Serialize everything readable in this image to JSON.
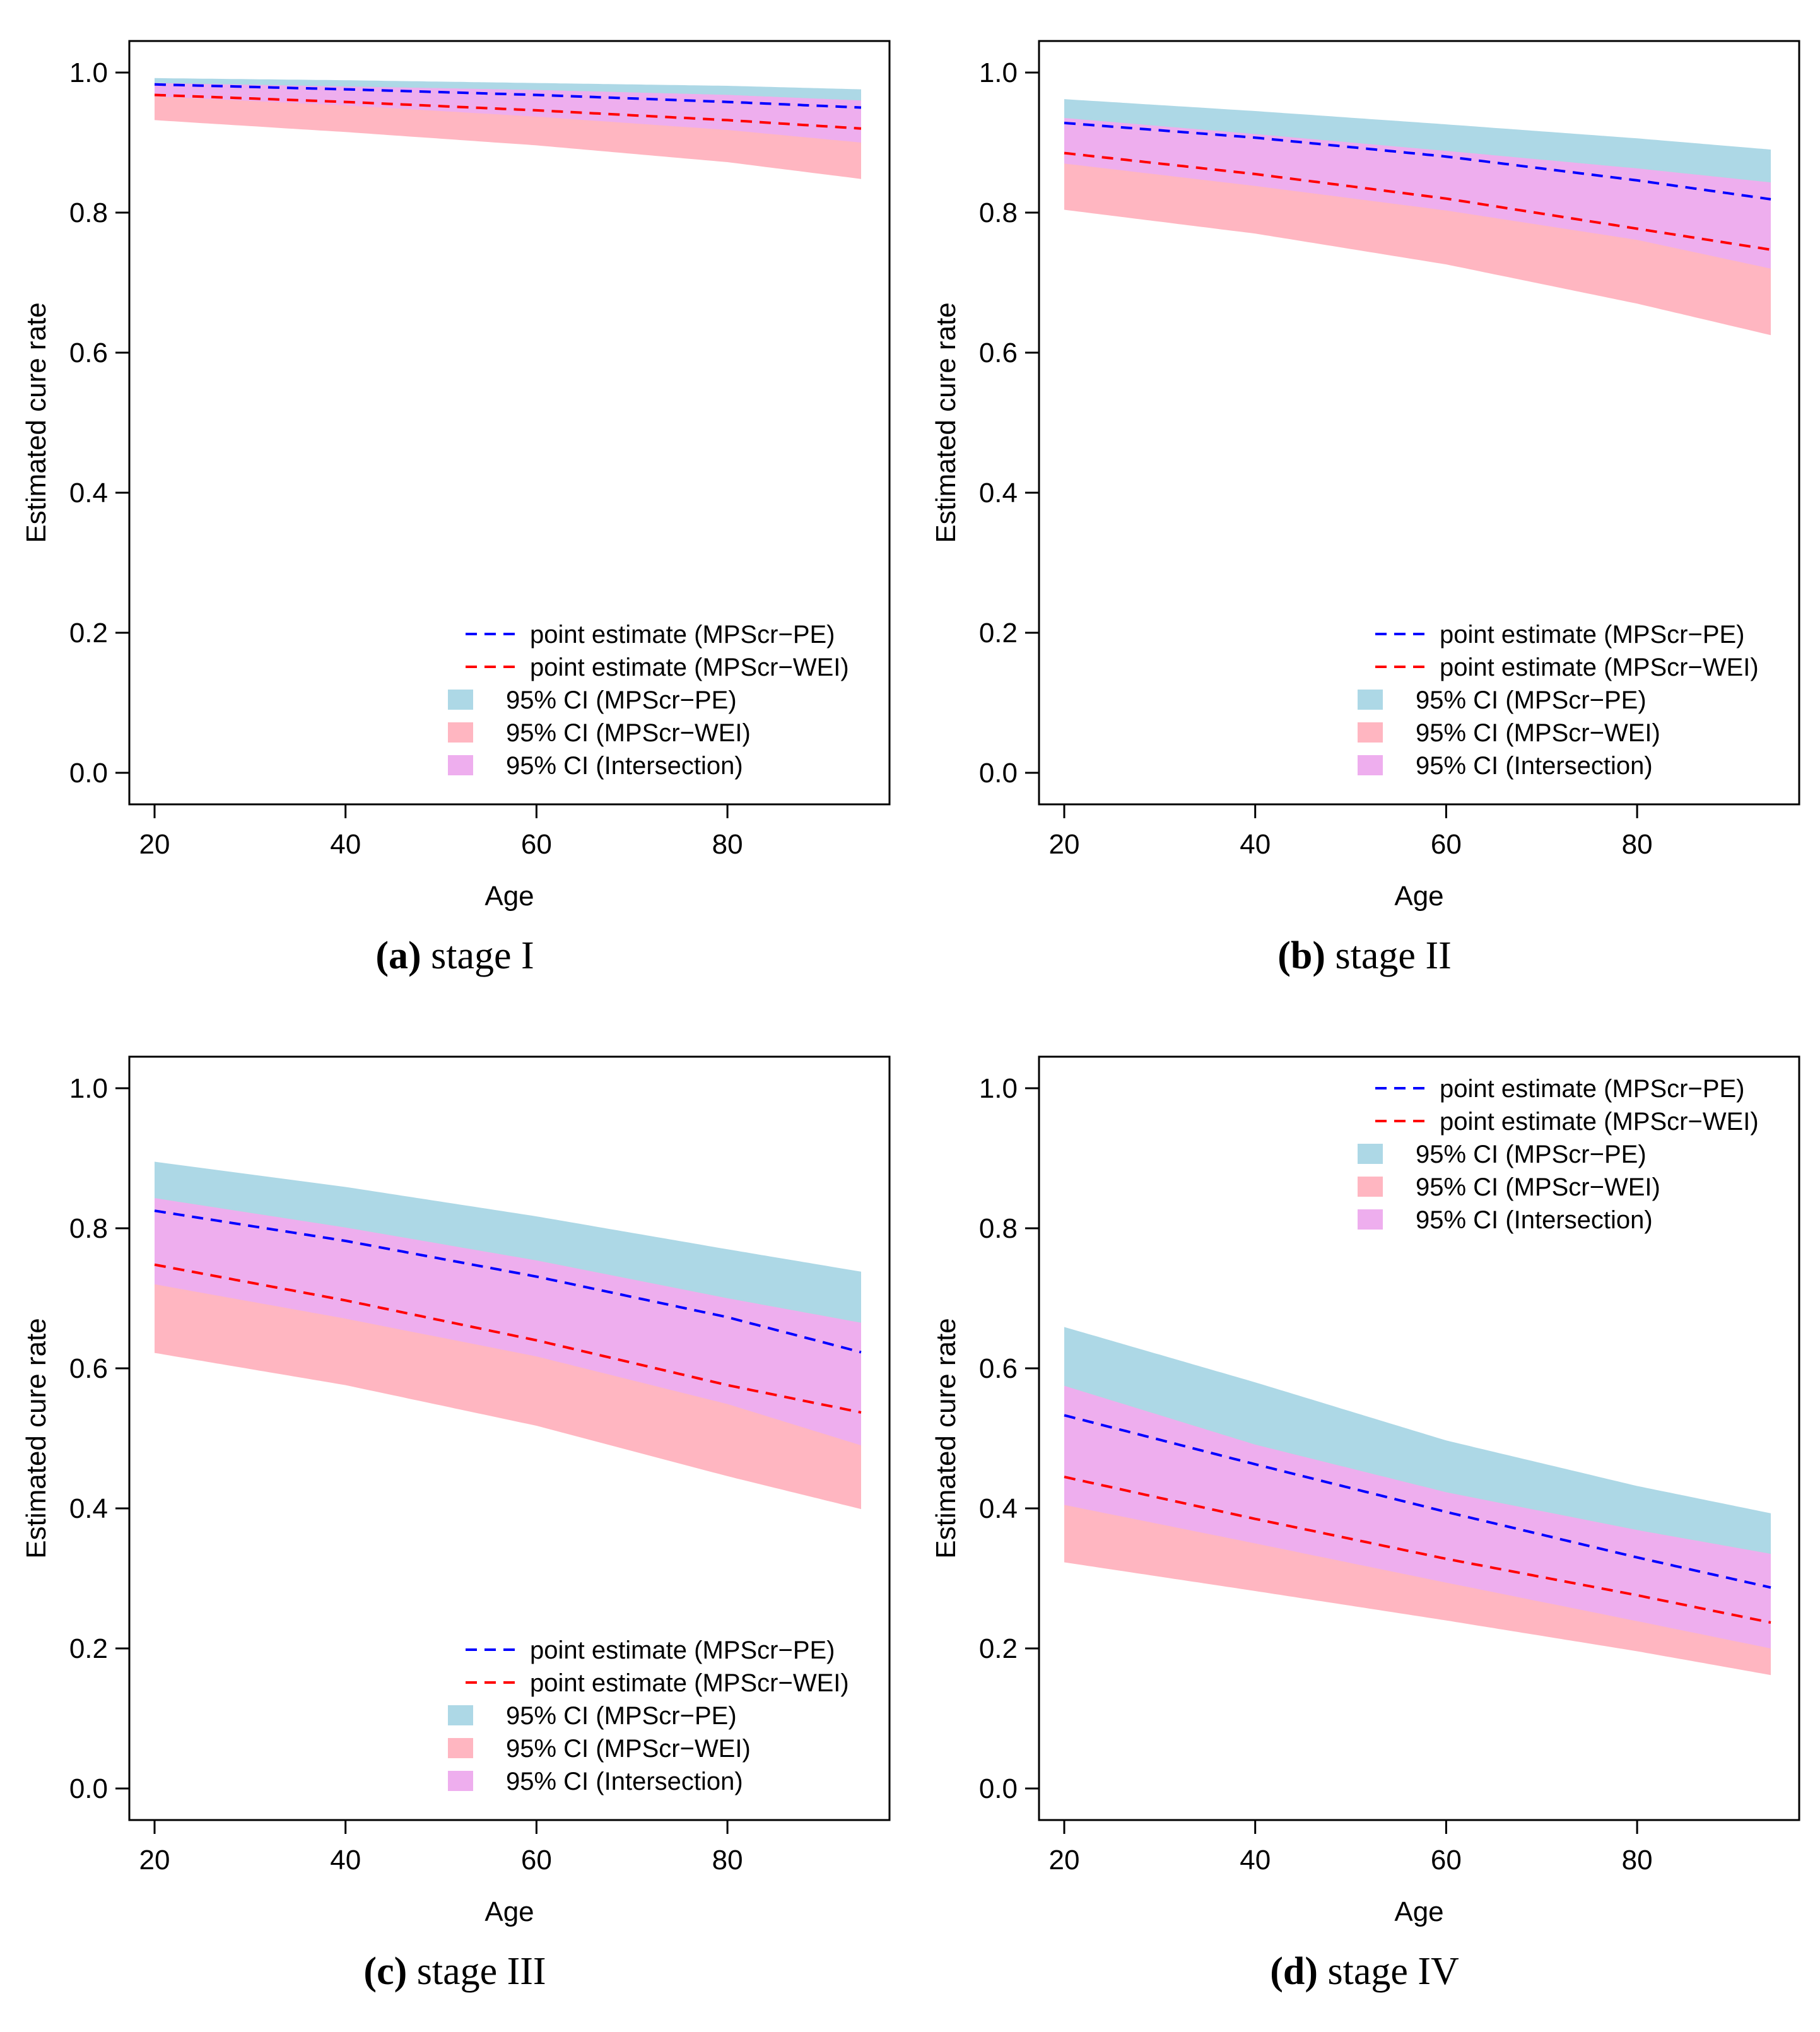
{
  "colors": {
    "pe_line": "#0000ff",
    "wei_line": "#ff0000",
    "ci_pe": "#add8e6",
    "ci_wei": "#ffb6c1",
    "ci_intersection": "#eeaeee",
    "axis": "#000000"
  },
  "axes": {
    "xlabel": "Age",
    "ylabel": "Estimated cure rate",
    "xticks": [
      20,
      40,
      60,
      80
    ],
    "yticks": [
      0.0,
      0.2,
      0.4,
      0.6,
      0.8,
      1.0
    ],
    "ytick_labels": [
      "0.0",
      "0.2",
      "0.4",
      "0.6",
      "0.8",
      "1.0"
    ],
    "xlim": [
      17,
      97
    ],
    "ylim": [
      -0.045,
      1.045
    ]
  },
  "legend_labels": {
    "pe": "point estimate (MPScr−PE)",
    "wei": "point estimate (MPScr−WEI)",
    "ci_pe": "95% CI (MPScr−PE)",
    "ci_wei": "95% CI (MPScr−WEI)",
    "ci_intersection": "95% CI (Intersection)"
  },
  "chart_data": [
    {
      "type": "area",
      "panel_letter": "(a)",
      "panel_title": "stage I",
      "legend_position": "bottom-right",
      "x": [
        20,
        40,
        60,
        80,
        94
      ],
      "series": [
        {
          "name": "point estimate (MPScr−PE)",
          "kind": "line",
          "values": [
            0.983,
            0.976,
            0.968,
            0.958,
            0.95
          ]
        },
        {
          "name": "point estimate (MPScr−WEI)",
          "kind": "line",
          "values": [
            0.968,
            0.958,
            0.946,
            0.932,
            0.92
          ]
        },
        {
          "name": "95% CI (MPScr−PE)",
          "kind": "band",
          "lower": [
            0.966,
            0.953,
            0.937,
            0.918,
            0.9
          ],
          "upper": [
            0.992,
            0.989,
            0.985,
            0.981,
            0.976
          ]
        },
        {
          "name": "95% CI (MPScr−WEI)",
          "kind": "band",
          "lower": [
            0.932,
            0.915,
            0.896,
            0.872,
            0.848
          ],
          "upper": [
            0.985,
            0.98,
            0.975,
            0.968,
            0.96
          ]
        }
      ]
    },
    {
      "type": "area",
      "panel_letter": "(b)",
      "panel_title": "stage II",
      "legend_position": "bottom-right",
      "x": [
        20,
        40,
        60,
        80,
        94
      ],
      "series": [
        {
          "name": "point estimate (MPScr−PE)",
          "kind": "line",
          "values": [
            0.928,
            0.907,
            0.88,
            0.846,
            0.819
          ]
        },
        {
          "name": "point estimate (MPScr−WEI)",
          "kind": "line",
          "values": [
            0.885,
            0.855,
            0.82,
            0.777,
            0.747
          ]
        },
        {
          "name": "95% CI (MPScr−PE)",
          "kind": "band",
          "lower": [
            0.87,
            0.838,
            0.803,
            0.761,
            0.72
          ],
          "upper": [
            0.962,
            0.945,
            0.926,
            0.906,
            0.89
          ]
        },
        {
          "name": "95% CI (MPScr−WEI)",
          "kind": "band",
          "lower": [
            0.804,
            0.77,
            0.726,
            0.67,
            0.625
          ],
          "upper": [
            0.935,
            0.912,
            0.888,
            0.863,
            0.843
          ]
        }
      ]
    },
    {
      "type": "area",
      "panel_letter": "(c)",
      "panel_title": "stage III",
      "legend_position": "bottom-right",
      "x": [
        20,
        40,
        60,
        80,
        94
      ],
      "series": [
        {
          "name": "point estimate (MPScr−PE)",
          "kind": "line",
          "values": [
            0.825,
            0.782,
            0.731,
            0.673,
            0.623
          ]
        },
        {
          "name": "point estimate (MPScr−WEI)",
          "kind": "line",
          "values": [
            0.748,
            0.697,
            0.64,
            0.576,
            0.537
          ]
        },
        {
          "name": "95% CI (MPScr−PE)",
          "kind": "band",
          "lower": [
            0.72,
            0.671,
            0.617,
            0.549,
            0.49
          ],
          "upper": [
            0.895,
            0.859,
            0.817,
            0.77,
            0.738
          ]
        },
        {
          "name": "95% CI (MPScr−WEI)",
          "kind": "band",
          "lower": [
            0.622,
            0.576,
            0.518,
            0.446,
            0.399
          ],
          "upper": [
            0.843,
            0.801,
            0.754,
            0.7,
            0.665
          ]
        }
      ]
    },
    {
      "type": "area",
      "panel_letter": "(d)",
      "panel_title": "stage IV",
      "legend_position": "top-right",
      "x": [
        20,
        40,
        60,
        80,
        94
      ],
      "series": [
        {
          "name": "point estimate (MPScr−PE)",
          "kind": "line",
          "values": [
            0.533,
            0.463,
            0.395,
            0.33,
            0.287
          ]
        },
        {
          "name": "point estimate (MPScr−WEI)",
          "kind": "line",
          "values": [
            0.445,
            0.385,
            0.328,
            0.276,
            0.237
          ]
        },
        {
          "name": "95% CI (MPScr−PE)",
          "kind": "band",
          "lower": [
            0.405,
            0.35,
            0.294,
            0.239,
            0.2
          ],
          "upper": [
            0.659,
            0.58,
            0.497,
            0.432,
            0.393
          ]
        },
        {
          "name": "95% CI (MPScr−WEI)",
          "kind": "band",
          "lower": [
            0.323,
            0.282,
            0.24,
            0.196,
            0.162
          ],
          "upper": [
            0.575,
            0.491,
            0.423,
            0.369,
            0.335
          ]
        }
      ]
    }
  ]
}
